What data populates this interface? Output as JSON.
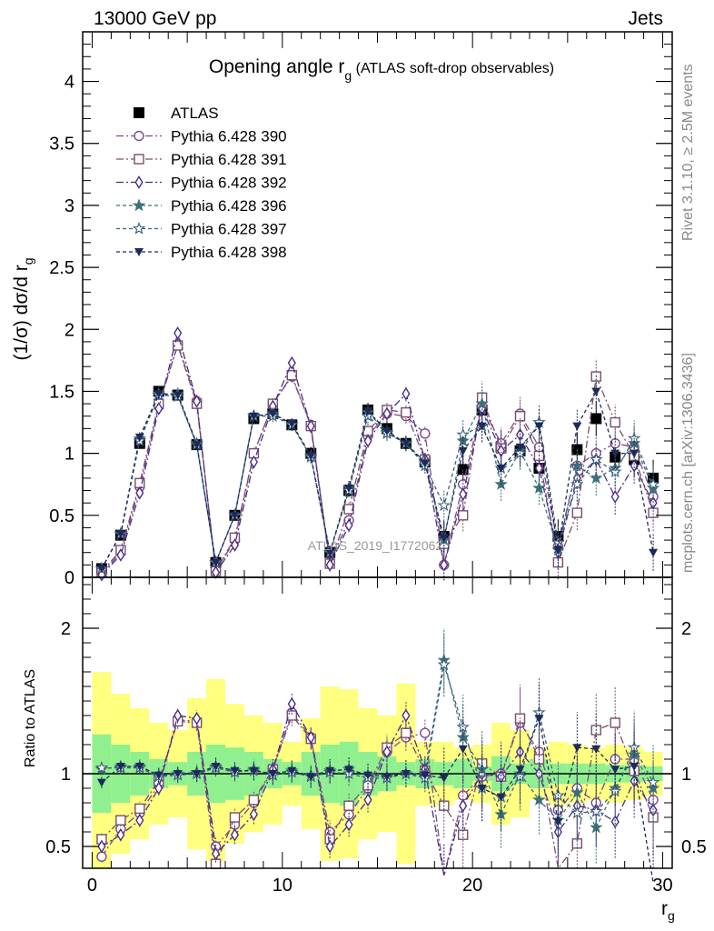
{
  "header": {
    "left": "13000 GeV pp",
    "right": "Jets"
  },
  "side_labels": {
    "rivet": "Rivet 3.1.10, ≥ 2.5M events",
    "mcplots": "mcplots.cern.ch [arXiv:1306.3436]"
  },
  "watermark": "ATLAS_2019_I1772062",
  "main_title": {
    "text": "Opening angle r",
    "sub": "g",
    "suffix": " (ATLAS soft-drop observables)"
  },
  "colors": {
    "atlas": "#000000",
    "p390": "#7b4a8c",
    "p391": "#7a4f6a",
    "p392": "#4a2e8a",
    "p396": "#3f6f78",
    "p397": "#3a5f7a",
    "p398": "#1e2a5a",
    "band_yellow": "#ffff80",
    "band_green": "#90f090"
  },
  "chart_data": {
    "type": "line",
    "x": [
      0.5,
      1.5,
      2.5,
      3.5,
      4.5,
      5.5,
      6.5,
      7.5,
      8.5,
      9.5,
      10.5,
      11.5,
      12.5,
      13.5,
      14.5,
      15.5,
      16.5,
      17.5,
      18.5,
      19.5,
      20.5,
      21.5,
      22.5,
      23.5,
      24.5,
      25.5,
      26.5,
      27.5,
      28.5,
      29.5
    ],
    "xlabel": "r",
    "xlabel_sub": "g",
    "ylabel": "(1/σ) dσ/d r",
    "ylabel_sub": "g",
    "xlim": [
      -0.5,
      30.5
    ],
    "ylim": [
      0,
      4.4
    ],
    "x_ticks": [
      0,
      10,
      20,
      30
    ],
    "y_ticks": [
      0,
      0.5,
      1,
      1.5,
      2,
      2.5,
      3,
      3.5,
      4
    ],
    "y_tick_labels": [
      "0",
      "0.5",
      "1",
      "1.5",
      "2",
      "2.5",
      "3",
      "3.5",
      "4"
    ],
    "series": [
      {
        "name": "ATLAS",
        "marker": "square-filled",
        "color": "#000000",
        "values": [
          0.07,
          0.34,
          1.08,
          1.5,
          1.47,
          1.07,
          0.12,
          0.5,
          1.28,
          1.32,
          1.23,
          1.0,
          0.2,
          0.7,
          1.35,
          1.2,
          1.08,
          0.93,
          0.33,
          0.87,
          1.35,
          1.05,
          1.02,
          0.88,
          0.33,
          1.03,
          1.28,
          0.97,
          0.95,
          0.8
        ]
      },
      {
        "name": "Pythia 6.428 390",
        "marker": "circle-open",
        "color": "#7b4a8c",
        "values": [
          0.03,
          0.2,
          0.73,
          1.38,
          1.88,
          1.42,
          0.05,
          0.3,
          1.0,
          1.4,
          1.62,
          1.23,
          0.12,
          0.46,
          1.14,
          1.32,
          1.3,
          1.16,
          0.1,
          0.75,
          1.38,
          1.08,
          1.32,
          1.05,
          0.25,
          0.9,
          1.0,
          1.08,
          1.05,
          0.65
        ]
      },
      {
        "name": "Pythia 6.428 391",
        "marker": "square-open",
        "color": "#7a4f6a",
        "values": [
          0.04,
          0.22,
          0.76,
          1.4,
          1.87,
          1.4,
          0.05,
          0.32,
          1.0,
          1.4,
          1.63,
          1.22,
          0.11,
          0.55,
          1.18,
          1.35,
          1.33,
          0.95,
          0.27,
          0.5,
          1.45,
          1.04,
          1.3,
          0.98,
          0.12,
          0.52,
          1.62,
          1.25,
          0.98,
          0.52
        ]
      },
      {
        "name": "Pythia 6.428 392",
        "marker": "diamond-open",
        "color": "#4a2e8a",
        "values": [
          0.02,
          0.18,
          0.68,
          1.36,
          1.97,
          1.42,
          0.04,
          0.26,
          0.93,
          1.38,
          1.73,
          1.22,
          0.1,
          0.42,
          1.1,
          1.32,
          1.48,
          0.95,
          0.1,
          0.67,
          1.36,
          1.02,
          1.15,
          0.88,
          0.2,
          0.8,
          0.95,
          0.65,
          0.9,
          0.6
        ]
      },
      {
        "name": "Pythia 6.428 396",
        "marker": "star-filled",
        "color": "#3f6f78",
        "values": [
          0.07,
          0.35,
          1.12,
          1.48,
          1.48,
          1.08,
          0.12,
          0.5,
          1.3,
          1.32,
          1.23,
          0.98,
          0.2,
          0.72,
          1.33,
          1.17,
          1.08,
          0.93,
          0.3,
          1.1,
          1.4,
          0.75,
          1.02,
          0.72,
          0.22,
          0.9,
          0.8,
          0.88,
          1.08,
          0.72
        ]
      },
      {
        "name": "Pythia 6.428 397",
        "marker": "star-open",
        "color": "#3a5f7a",
        "values": [
          0.07,
          0.35,
          1.1,
          1.47,
          1.46,
          1.07,
          0.12,
          0.5,
          1.3,
          1.3,
          1.23,
          0.97,
          0.2,
          0.7,
          1.3,
          1.16,
          1.08,
          0.9,
          0.58,
          1.15,
          1.22,
          0.88,
          1.0,
          1.25,
          0.28,
          0.75,
          0.95,
          0.85,
          1.12,
          0.75
        ]
      },
      {
        "name": "Pythia 6.428 398",
        "marker": "triangle-down-filled",
        "color": "#1e2a5a",
        "values": [
          0.07,
          0.35,
          1.13,
          1.48,
          1.47,
          1.07,
          0.12,
          0.5,
          1.3,
          1.32,
          1.24,
          0.98,
          0.2,
          0.72,
          1.34,
          1.18,
          1.08,
          0.92,
          0.32,
          1.02,
          1.22,
          0.88,
          1.05,
          1.22,
          0.22,
          1.22,
          1.5,
          1.0,
          1.0,
          0.2
        ]
      }
    ],
    "ratio_panel": {
      "ylabel": "Ratio to ATLAS",
      "ylim": [
        0.35,
        2.35
      ],
      "y_ticks": [
        0.5,
        1,
        2
      ],
      "y_tick_labels": [
        "0.5",
        "1",
        "2"
      ],
      "band_green_low": [
        0.73,
        0.8,
        0.85,
        0.9,
        0.92,
        0.85,
        0.8,
        0.82,
        0.85,
        0.9,
        0.92,
        0.85,
        0.8,
        0.78,
        0.85,
        0.88,
        0.92,
        0.9,
        0.92,
        0.9,
        0.95,
        0.88,
        0.93,
        0.9,
        0.93,
        0.93,
        0.93,
        0.94,
        0.94,
        0.95
      ],
      "band_green_high": [
        1.27,
        1.2,
        1.15,
        1.1,
        1.08,
        1.15,
        1.2,
        1.18,
        1.15,
        1.1,
        1.08,
        1.15,
        1.2,
        1.22,
        1.15,
        1.12,
        1.08,
        1.1,
        1.08,
        1.1,
        1.05,
        1.12,
        1.07,
        1.1,
        1.07,
        1.07,
        1.07,
        1.06,
        1.06,
        1.05
      ],
      "band_yellow_low": [
        0.35,
        0.45,
        0.55,
        0.65,
        0.7,
        0.48,
        0.4,
        0.52,
        0.6,
        0.65,
        0.78,
        0.62,
        0.4,
        0.42,
        0.55,
        0.6,
        0.38,
        0.78,
        0.78,
        0.82,
        0.8,
        0.65,
        0.7,
        0.82,
        0.78,
        0.8,
        0.82,
        0.8,
        0.82,
        0.85
      ],
      "band_yellow_high": [
        1.7,
        1.55,
        1.45,
        1.35,
        1.3,
        1.52,
        1.65,
        1.48,
        1.4,
        1.35,
        1.22,
        1.38,
        1.6,
        1.58,
        1.45,
        1.4,
        1.62,
        1.22,
        1.22,
        1.18,
        1.2,
        1.35,
        1.3,
        1.18,
        1.22,
        1.2,
        1.18,
        1.2,
        1.18,
        1.15
      ],
      "series": [
        {
          "name": "Pythia 6.428 390",
          "values": [
            0.43,
            0.62,
            0.73,
            0.92,
            1.37,
            1.36,
            0.5,
            0.65,
            0.8,
            1.03,
            1.42,
            1.25,
            0.6,
            0.72,
            0.9,
            1.15,
            1.25,
            1.28,
            0.3,
            0.85,
            0.98,
            1.0,
            1.35,
            1.15,
            0.75,
            0.9,
            0.8,
            1.1,
            1.1,
            0.82
          ]
        },
        {
          "name": "Pythia 6.428 391",
          "values": [
            0.55,
            0.68,
            0.76,
            0.95,
            1.36,
            1.35,
            0.38,
            0.7,
            0.82,
            1.03,
            1.4,
            1.24,
            0.55,
            0.78,
            0.92,
            1.18,
            1.28,
            1.02,
            0.78,
            0.58,
            1.07,
            0.98,
            1.38,
            1.1,
            0.35,
            0.52,
            1.3,
            1.35,
            1.02,
            0.7
          ]
        },
        {
          "name": "Pythia 6.428 392",
          "values": [
            0.5,
            0.58,
            0.68,
            0.9,
            1.4,
            1.38,
            0.45,
            0.58,
            0.72,
            1.03,
            1.48,
            1.25,
            0.5,
            0.65,
            0.82,
            1.15,
            1.4,
            1.03,
            0.3,
            0.78,
            1.0,
            0.98,
            1.15,
            1.0,
            0.6,
            0.78,
            0.75,
            0.67,
            0.95,
            0.75
          ]
        },
        {
          "name": "Pythia 6.428 396",
          "values": [
            1.03,
            1.05,
            1.05,
            0.99,
            1.0,
            1.01,
            1.05,
            1.02,
            1.02,
            1.0,
            1.02,
            0.99,
            1.02,
            1.03,
            0.99,
            0.98,
            1.0,
            1.0,
            1.78,
            1.25,
            1.03,
            0.72,
            1.0,
            0.82,
            0.68,
            0.87,
            0.63,
            0.9,
            1.13,
            0.9
          ]
        },
        {
          "name": "Pythia 6.428 397",
          "values": [
            1.04,
            1.04,
            1.04,
            0.98,
            0.99,
            1.0,
            1.04,
            1.01,
            1.03,
            0.99,
            1.01,
            0.98,
            1.01,
            1.0,
            0.97,
            0.97,
            1.0,
            0.97,
            1.75,
            1.32,
            0.9,
            0.84,
            0.98,
            1.42,
            0.85,
            0.73,
            0.74,
            0.88,
            1.18,
            0.94
          ]
        },
        {
          "name": "Pythia 6.428 398",
          "values": [
            0.94,
            1.05,
            1.05,
            0.99,
            1.0,
            1.0,
            1.05,
            1.02,
            1.02,
            1.0,
            1.02,
            0.98,
            1.02,
            1.03,
            0.99,
            0.98,
            1.0,
            0.99,
            0.97,
            1.17,
            0.9,
            0.84,
            1.03,
            1.38,
            0.67,
            1.18,
            1.17,
            1.03,
            1.05,
            0.25
          ]
        }
      ]
    }
  }
}
